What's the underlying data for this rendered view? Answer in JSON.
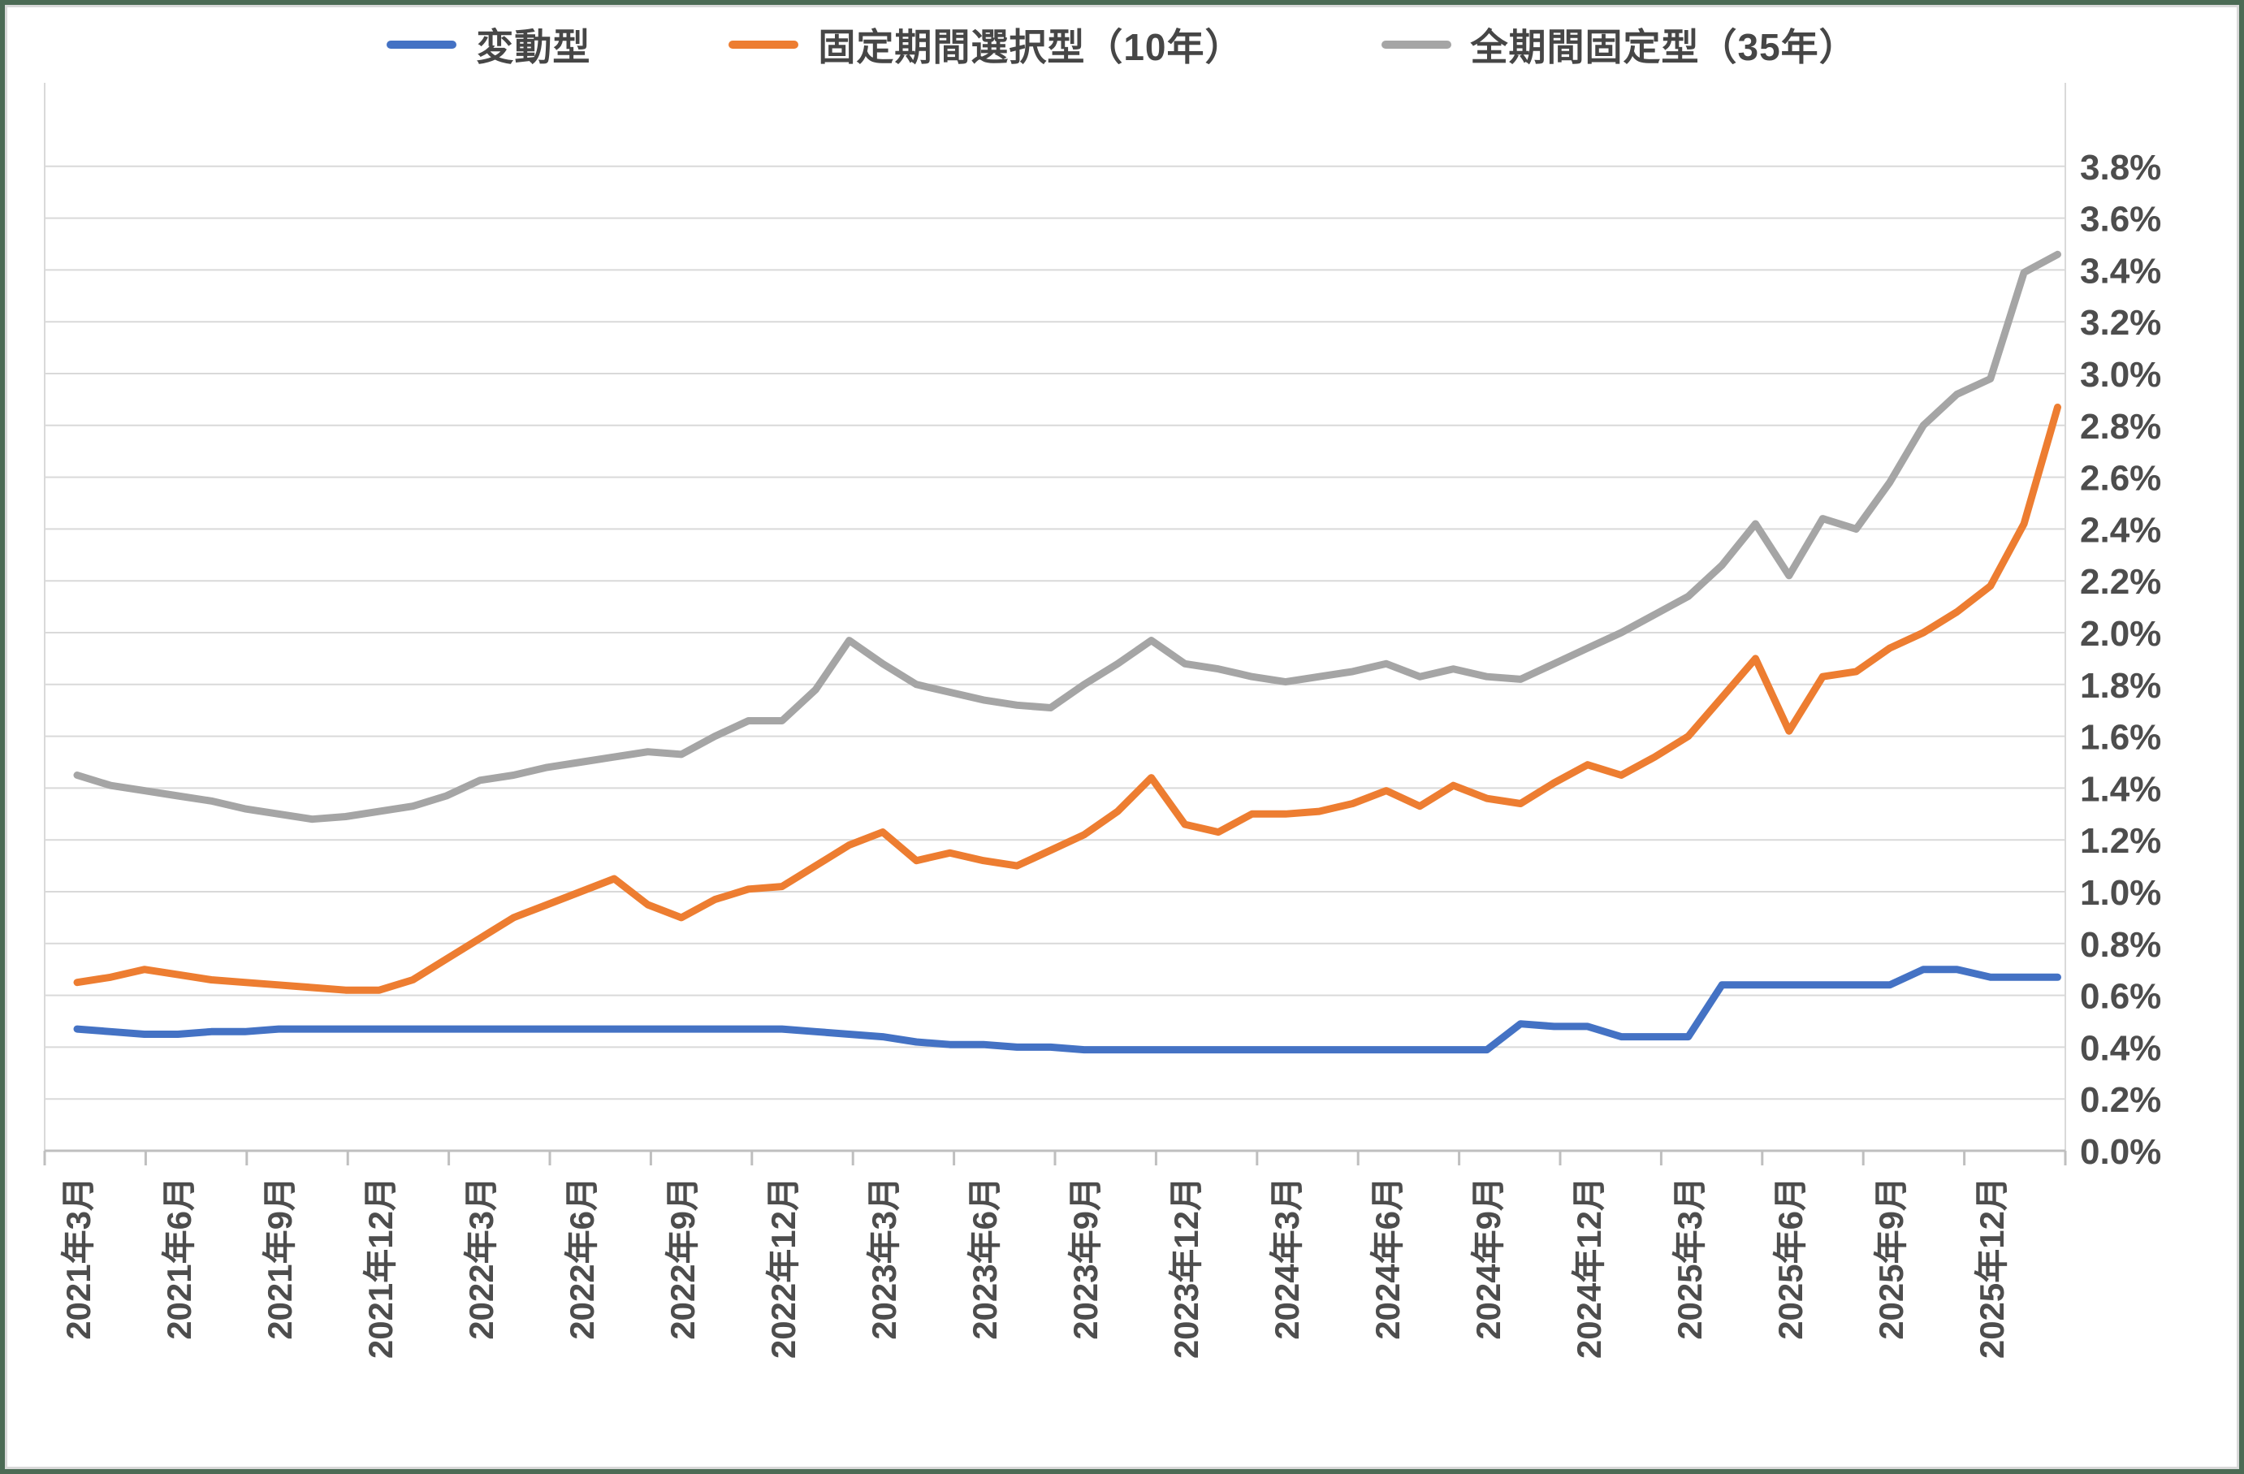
{
  "legend": {
    "items": [
      {
        "label": "変動型",
        "color": "#4472C4"
      },
      {
        "label": "固定期間選択型（10年）",
        "color": "#ED7D31"
      },
      {
        "label": "全期間固定型（35年）",
        "color": "#A5A5A5"
      }
    ]
  },
  "chart_data": {
    "type": "line",
    "title": "",
    "xlabel": "",
    "ylabel": "",
    "unit": "%",
    "n_points": 60,
    "x_start": "2021年3月",
    "x_end": "2026年2月",
    "x_label_interval": 3,
    "x_tick_labels": [
      "2021年3月",
      "2021年6月",
      "2021年9月",
      "2021年12月",
      "2022年3月",
      "2022年6月",
      "2022年9月",
      "2022年12月",
      "2023年3月",
      "2023年6月",
      "2023年9月",
      "2023年12月",
      "2024年3月",
      "2024年6月",
      "2024年9月",
      "2024年12月",
      "2025年3月",
      "2025年6月",
      "2025年9月",
      "2025年12月"
    ],
    "y_tick_labels": [
      "0.0%",
      "0.2%",
      "0.4%",
      "0.6%",
      "0.8%",
      "1.0%",
      "1.2%",
      "1.4%",
      "1.6%",
      "1.8%",
      "2.0%",
      "2.2%",
      "2.4%",
      "2.6%",
      "2.8%",
      "3.0%",
      "3.2%",
      "3.4%",
      "3.6%",
      "3.8%"
    ],
    "ylim": [
      0.0,
      4.12
    ],
    "y_gridline_max": 3.8,
    "y_step": 0.2,
    "grid": true,
    "legend_position": "top",
    "series": [
      {
        "name": "変動型",
        "color": "#4472C4",
        "values": [
          0.47,
          0.46,
          0.45,
          0.45,
          0.46,
          0.46,
          0.47,
          0.47,
          0.47,
          0.47,
          0.47,
          0.47,
          0.47,
          0.47,
          0.47,
          0.47,
          0.47,
          0.47,
          0.47,
          0.47,
          0.47,
          0.47,
          0.46,
          0.45,
          0.44,
          0.42,
          0.41,
          0.41,
          0.4,
          0.4,
          0.39,
          0.39,
          0.39,
          0.39,
          0.39,
          0.39,
          0.39,
          0.39,
          0.39,
          0.39,
          0.39,
          0.39,
          0.39,
          0.49,
          0.48,
          0.48,
          0.44,
          0.44,
          0.44,
          0.64,
          0.64,
          0.64,
          0.64,
          0.64,
          0.64,
          0.7,
          0.7,
          0.67,
          0.67,
          0.67
        ]
      },
      {
        "name": "固定期間選択型（10年）",
        "color": "#ED7D31",
        "values": [
          0.65,
          0.67,
          0.7,
          0.68,
          0.66,
          0.65,
          0.64,
          0.63,
          0.62,
          0.62,
          0.66,
          0.74,
          0.82,
          0.9,
          0.95,
          1.0,
          1.05,
          0.95,
          0.9,
          0.97,
          1.01,
          1.02,
          1.1,
          1.18,
          1.23,
          1.12,
          1.15,
          1.12,
          1.1,
          1.16,
          1.22,
          1.31,
          1.44,
          1.26,
          1.23,
          1.3,
          1.3,
          1.31,
          1.34,
          1.39,
          1.33,
          1.41,
          1.36,
          1.34,
          1.42,
          1.49,
          1.45,
          1.52,
          1.6,
          1.75,
          1.9,
          1.62,
          1.83,
          1.85,
          1.94,
          2.0,
          2.08,
          2.18,
          2.42,
          2.87
        ]
      },
      {
        "name": "全期間固定型（35年）",
        "color": "#A5A5A5",
        "values": [
          1.45,
          1.41,
          1.39,
          1.37,
          1.35,
          1.32,
          1.3,
          1.28,
          1.29,
          1.31,
          1.33,
          1.37,
          1.43,
          1.45,
          1.48,
          1.5,
          1.52,
          1.54,
          1.53,
          1.6,
          1.66,
          1.66,
          1.78,
          1.97,
          1.88,
          1.8,
          1.77,
          1.74,
          1.72,
          1.71,
          1.8,
          1.88,
          1.97,
          1.88,
          1.86,
          1.83,
          1.81,
          1.83,
          1.85,
          1.88,
          1.83,
          1.86,
          1.83,
          1.82,
          1.88,
          1.94,
          2.0,
          2.07,
          2.14,
          2.26,
          2.42,
          2.22,
          2.44,
          2.4,
          2.58,
          2.8,
          2.92,
          2.98,
          3.39,
          3.46
        ]
      }
    ]
  },
  "colors": {
    "frame_border": "#4c6b55",
    "inner_border": "#d9d9d9",
    "gridline": "#d9d9d9",
    "axis_line": "#bfbfbf",
    "text": "#4d4d4d",
    "background": "#ffffff"
  }
}
